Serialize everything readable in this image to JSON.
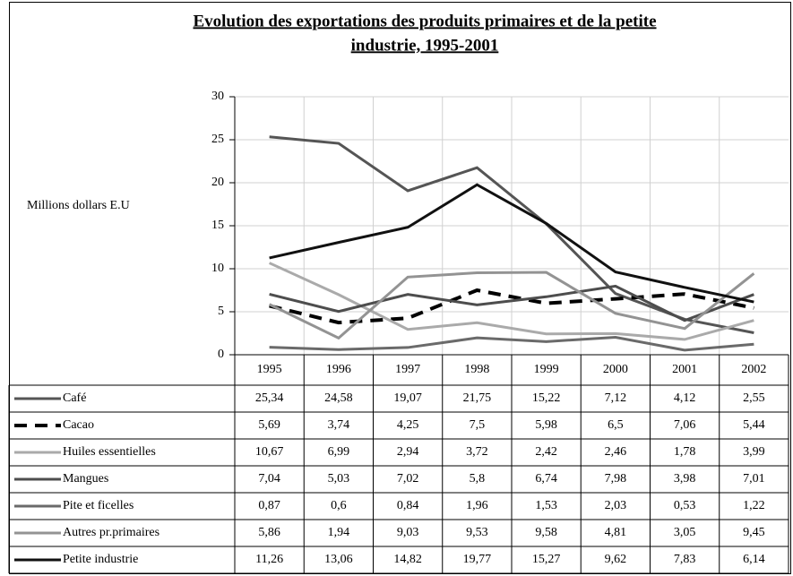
{
  "chart_data": {
    "type": "line",
    "title": [
      "Evolution des exportations des produits primaires et de la petite",
      "industrie, 1995-2001"
    ],
    "y_label": "Millions dollars E.U",
    "categories": [
      "1995",
      "1996",
      "1997",
      "1998",
      "1999",
      "2000",
      "2001",
      "2002"
    ],
    "ylim": [
      0,
      30
    ],
    "yticks": [
      0,
      5,
      10,
      15,
      20,
      25,
      30
    ],
    "grid": true,
    "series": [
      {
        "name": "Café",
        "color": "#555555",
        "dashed": false,
        "values": [
          25.34,
          24.58,
          19.07,
          21.75,
          15.22,
          7.12,
          4.12,
          2.55
        ],
        "value_labels": [
          "25,34",
          "24,58",
          "19,07",
          "21,75",
          "15,22",
          "7,12",
          "4,12",
          "2,55"
        ]
      },
      {
        "name": "Cacao",
        "color": "#000000",
        "dashed": true,
        "values": [
          5.69,
          3.74,
          4.25,
          7.5,
          5.98,
          6.5,
          7.06,
          5.44
        ],
        "value_labels": [
          "5,69",
          "3,74",
          "4,25",
          "7,5",
          "5,98",
          "6,5",
          "7,06",
          "5,44"
        ]
      },
      {
        "name": "Huiles essentielles",
        "color": "#aaaaaa",
        "dashed": false,
        "values": [
          10.67,
          6.99,
          2.94,
          3.72,
          2.42,
          2.46,
          1.78,
          3.99
        ],
        "value_labels": [
          "10,67",
          "6,99",
          "2,94",
          "3,72",
          "2,42",
          "2,46",
          "1,78",
          "3,99"
        ]
      },
      {
        "name": "Mangues",
        "color": "#4d4d4d",
        "dashed": false,
        "values": [
          7.04,
          5.03,
          7.02,
          5.8,
          6.74,
          7.98,
          3.98,
          7.01
        ],
        "value_labels": [
          "7,04",
          "5,03",
          "7,02",
          "5,8",
          "6,74",
          "7,98",
          "3,98",
          "7,01"
        ]
      },
      {
        "name": "Pite et ficelles",
        "color": "#6a6a6a",
        "dashed": false,
        "values": [
          0.87,
          0.6,
          0.84,
          1.96,
          1.53,
          2.03,
          0.53,
          1.22
        ],
        "value_labels": [
          "0,87",
          "0,6",
          "0,84",
          "1,96",
          "1,53",
          "2,03",
          "0,53",
          "1,22"
        ]
      },
      {
        "name": "Autres pr.primaires",
        "color": "#939393",
        "dashed": false,
        "values": [
          5.86,
          1.94,
          9.03,
          9.53,
          9.58,
          4.81,
          3.05,
          9.45
        ],
        "value_labels": [
          "5,86",
          "1,94",
          "9,03",
          "9,53",
          "9,58",
          "4,81",
          "3,05",
          "9,45"
        ]
      },
      {
        "name": "Petite industrie",
        "color": "#111111",
        "dashed": false,
        "values": [
          11.26,
          13.06,
          14.82,
          19.77,
          15.27,
          9.62,
          7.83,
          6.14
        ],
        "value_labels": [
          "11,26",
          "13,06",
          "14,82",
          "19,77",
          "15,27",
          "9,62",
          "7,83",
          "6,14"
        ]
      }
    ]
  }
}
